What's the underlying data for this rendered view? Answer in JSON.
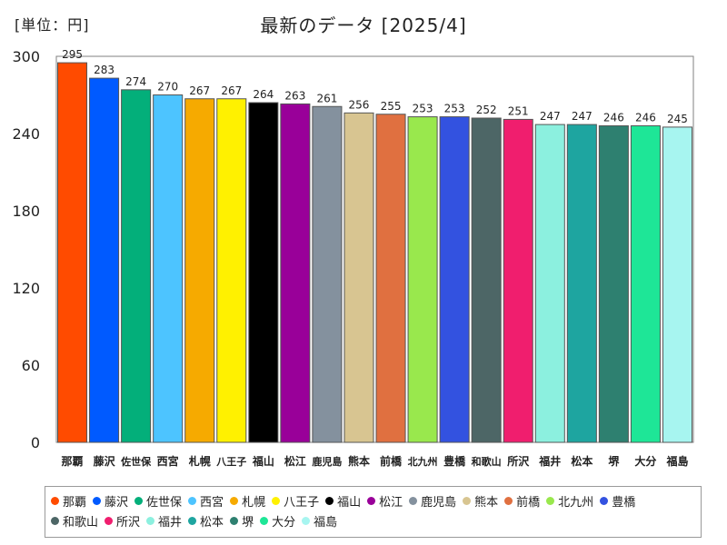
{
  "unit_label": "[単位：円]",
  "title": "最新のデータ [2025/4]",
  "chart_data": {
    "type": "bar",
    "categories": [
      "那覇",
      "藤沢",
      "佐世保",
      "西宮",
      "札幌",
      "八王子",
      "福山",
      "松江",
      "鹿児島",
      "熊本",
      "前橋",
      "北九州",
      "豊橋",
      "和歌山",
      "所沢",
      "福井",
      "松本",
      "堺",
      "大分",
      "福島"
    ],
    "values": [
      295,
      283,
      274,
      270,
      267,
      267,
      264,
      263,
      261,
      256,
      255,
      253,
      253,
      252,
      251,
      247,
      247,
      246,
      246,
      245
    ],
    "colors": [
      "#ff4b00",
      "#005aff",
      "#03af7a",
      "#4dc4ff",
      "#f6aa00",
      "#fff100",
      "#000000",
      "#990099",
      "#84919e",
      "#d8c591",
      "#e07040",
      "#99e84d",
      "#3352e0",
      "#4d6666",
      "#f01e6e",
      "#8cf0df",
      "#1ea5a0",
      "#2e8070",
      "#1ee697",
      "#a7f5f0"
    ],
    "ylim": [
      0,
      300
    ],
    "yticks": [
      0,
      60,
      120,
      180,
      240,
      300
    ],
    "grid": false,
    "legend_position": "bottom"
  }
}
